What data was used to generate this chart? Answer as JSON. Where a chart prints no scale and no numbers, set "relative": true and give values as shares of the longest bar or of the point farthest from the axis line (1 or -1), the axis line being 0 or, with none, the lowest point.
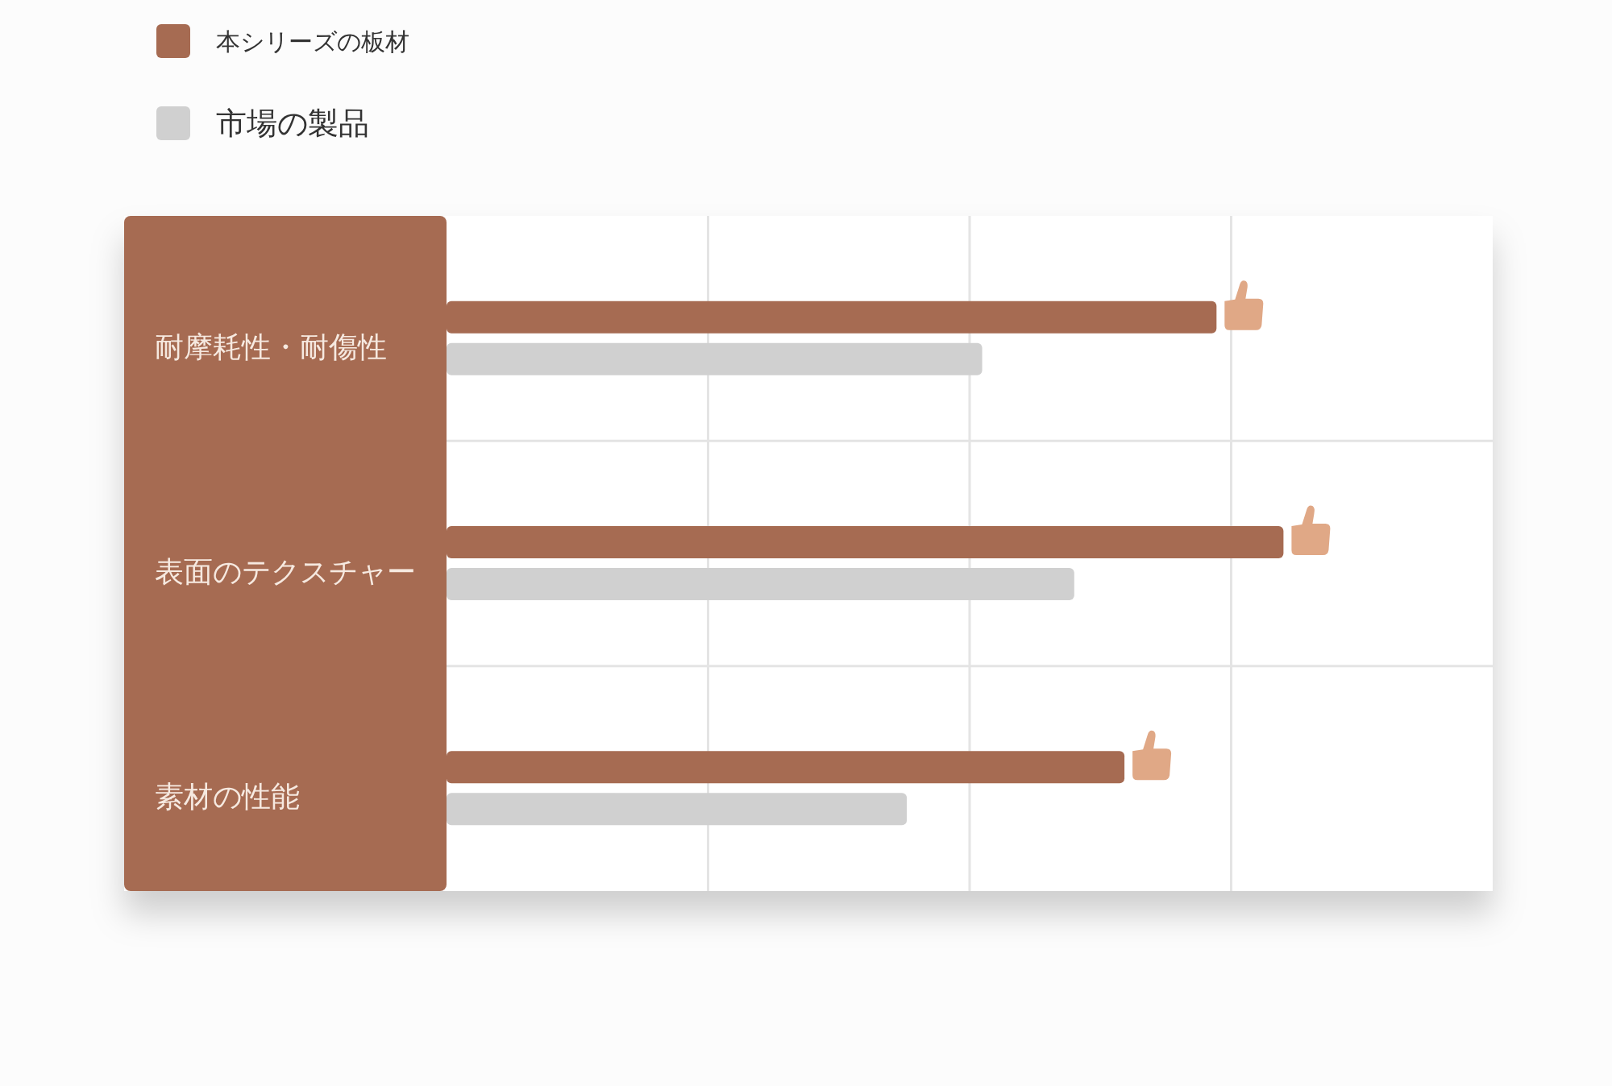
{
  "chart_data": {
    "type": "bar",
    "orientation": "horizontal",
    "relative": true,
    "categories": [
      "耐摩耗性・耐傷性",
      "表面のテクスチャー",
      "素材の性能"
    ],
    "series": [
      {
        "name": "本シリーズの板材",
        "color": "#a66b52",
        "values": [
          0.92,
          1,
          0.81
        ]
      },
      {
        "name": "市場の製品",
        "color": "#d0d0d0",
        "values": [
          0.64,
          0.75,
          0.55
        ]
      }
    ],
    "grid": true,
    "legend": "top left"
  }
}
